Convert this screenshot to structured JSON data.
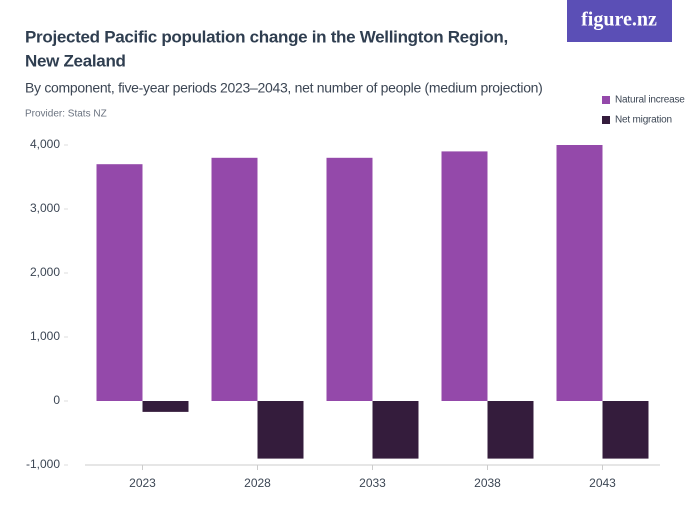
{
  "logo": "figure.nz",
  "chart_data": {
    "type": "bar",
    "title": "Projected Pacific population change in the Wellington Region,",
    "title_line2": "New Zealand",
    "subtitle": "By component, five-year periods 2023–2043, net number of people (medium projection)",
    "provider": "Provider: Stats NZ",
    "categories": [
      "2023",
      "2028",
      "2033",
      "2038",
      "2043"
    ],
    "series": [
      {
        "name": "Natural increase",
        "color": "#9449aa",
        "values": [
          3700,
          3800,
          3800,
          3900,
          4000
        ]
      },
      {
        "name": "Net migration",
        "color": "#341c3c",
        "values": [
          -170,
          -900,
          -900,
          -900,
          -900
        ]
      }
    ],
    "ylim": [
      -1000,
      4000
    ],
    "yticks": [
      {
        "value": -1000,
        "label": "-1,000"
      },
      0,
      {
        "value": 1000,
        "label": "1,000"
      },
      {
        "value": 2000,
        "label": "2,000"
      },
      {
        "value": 3000,
        "label": "3,000"
      },
      {
        "value": 4000,
        "label": "4,000"
      }
    ],
    "grid": false,
    "legend": "top-right"
  }
}
